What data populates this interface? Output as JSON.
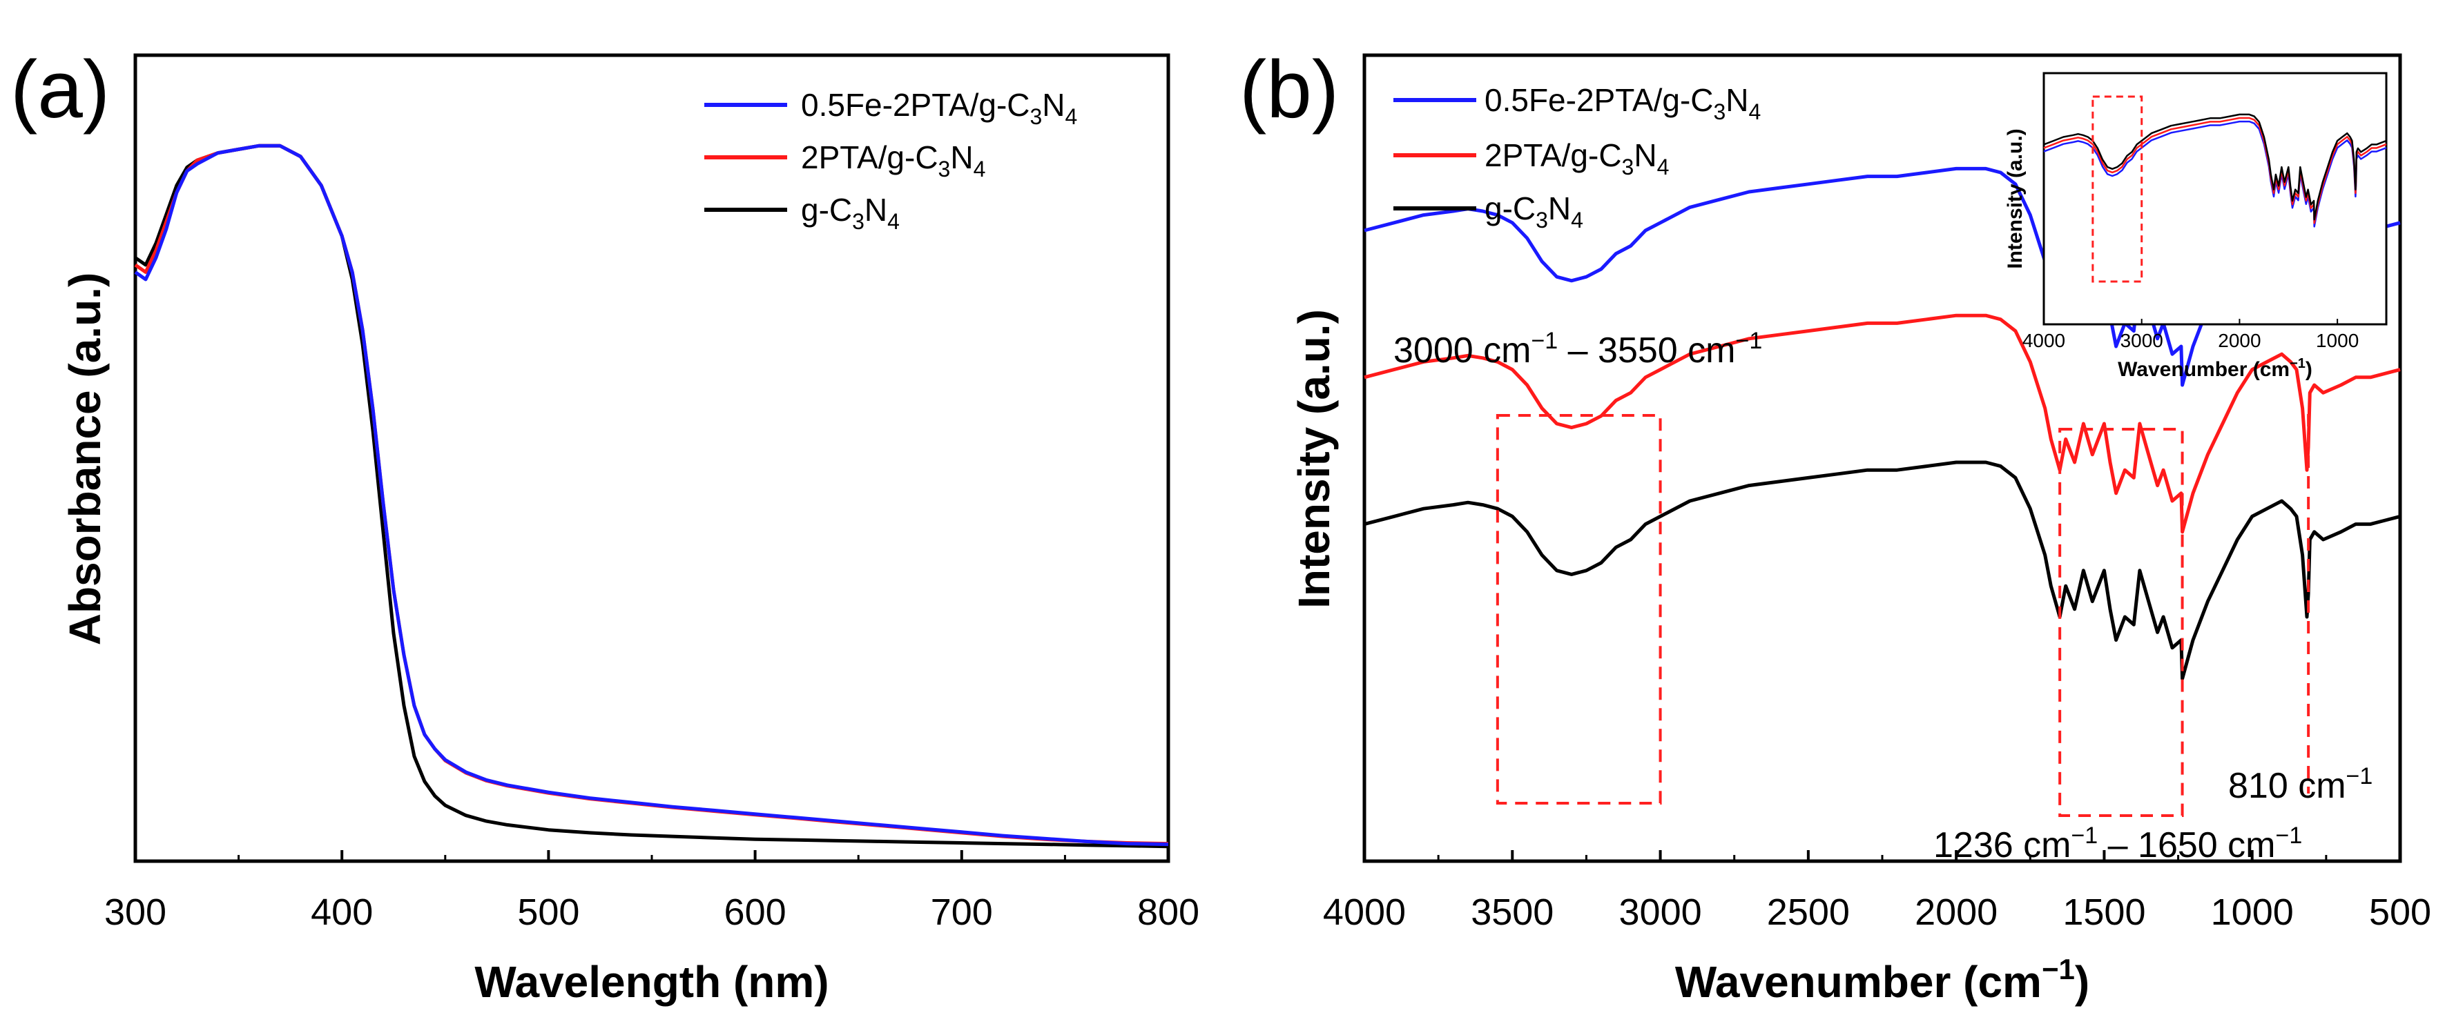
{
  "panels": [
    {
      "id": "a",
      "label": "(a)"
    },
    {
      "id": "b",
      "label": "(b)"
    }
  ],
  "colors": {
    "Fe": "#1a1aff",
    "PTA": "#ff1a1a",
    "g": "#000000",
    "box": "#ff2020"
  },
  "chart_data": [
    {
      "type": "line",
      "panel": "(a)",
      "xlabel": "Wavelength (nm)",
      "ylabel": "Absorbance (a.u.)",
      "xlim": [
        300,
        800
      ],
      "ylim": [
        0,
        1
      ],
      "xticks": [
        300,
        400,
        500,
        600,
        700,
        800
      ],
      "x": [
        300,
        305,
        310,
        315,
        320,
        325,
        330,
        340,
        350,
        360,
        370,
        380,
        390,
        400,
        405,
        410,
        415,
        420,
        425,
        430,
        435,
        440,
        445,
        450,
        460,
        470,
        480,
        500,
        520,
        540,
        560,
        580,
        600,
        620,
        640,
        660,
        680,
        700,
        720,
        740,
        760,
        780,
        800
      ],
      "series": [
        {
          "name": "0.5Fe-2PTA/g-C3N4",
          "color": "#1a1aff",
          "values": [
            0.8,
            0.79,
            0.82,
            0.86,
            0.91,
            0.94,
            0.95,
            0.965,
            0.97,
            0.975,
            0.975,
            0.96,
            0.92,
            0.85,
            0.8,
            0.72,
            0.61,
            0.48,
            0.36,
            0.27,
            0.2,
            0.16,
            0.14,
            0.125,
            0.108,
            0.097,
            0.09,
            0.08,
            0.072,
            0.066,
            0.06,
            0.055,
            0.05,
            0.045,
            0.04,
            0.035,
            0.03,
            0.025,
            0.02,
            0.016,
            0.012,
            0.009,
            0.008
          ]
        },
        {
          "name": "2PTA/g-C3N4",
          "color": "#ff1a1a",
          "values": [
            0.81,
            0.8,
            0.83,
            0.87,
            0.91,
            0.94,
            0.955,
            0.965,
            0.97,
            0.975,
            0.975,
            0.96,
            0.92,
            0.85,
            0.8,
            0.72,
            0.61,
            0.48,
            0.36,
            0.27,
            0.2,
            0.16,
            0.14,
            0.124,
            0.107,
            0.096,
            0.089,
            0.079,
            0.071,
            0.065,
            0.059,
            0.054,
            0.049,
            0.044,
            0.039,
            0.034,
            0.029,
            0.024,
            0.019,
            0.015,
            0.012,
            0.01,
            0.009
          ]
        },
        {
          "name": "g-C3N4",
          "color": "#000000",
          "values": [
            0.82,
            0.81,
            0.84,
            0.88,
            0.92,
            0.945,
            0.955,
            0.965,
            0.97,
            0.975,
            0.975,
            0.96,
            0.92,
            0.85,
            0.79,
            0.7,
            0.58,
            0.44,
            0.3,
            0.2,
            0.13,
            0.095,
            0.075,
            0.062,
            0.048,
            0.04,
            0.035,
            0.028,
            0.024,
            0.021,
            0.019,
            0.017,
            0.015,
            0.014,
            0.013,
            0.012,
            0.011,
            0.01,
            0.009,
            0.008,
            0.007,
            0.006,
            0.005
          ]
        }
      ],
      "legend": [
        {
          "main": "0.5Fe-2PTA/g-C",
          "sub1": "3",
          "mid": "N",
          "sub2": "4"
        },
        {
          "main": "2PTA/g-C",
          "sub1": "3",
          "mid": "N",
          "sub2": "4"
        },
        {
          "main": "g-C",
          "sub1": "3",
          "mid": "N",
          "sub2": "4"
        }
      ],
      "legend_position": "top-right"
    },
    {
      "type": "line",
      "panel": "(b)",
      "xlabel": "Wavenumber (cm",
      "xlabel_sup": "−1",
      "xlabel_end": ")",
      "ylabel": "Intensity (a.u.)",
      "xlim": [
        4000,
        500
      ],
      "ylim": [
        0,
        1
      ],
      "xticks": [
        4000,
        3500,
        3000,
        2500,
        2000,
        1500,
        1000,
        500
      ],
      "x": [
        4000,
        3900,
        3800,
        3700,
        3650,
        3600,
        3550,
        3500,
        3450,
        3400,
        3350,
        3300,
        3250,
        3200,
        3150,
        3100,
        3050,
        3000,
        2900,
        2800,
        2700,
        2600,
        2500,
        2400,
        2300,
        2200,
        2100,
        2000,
        1900,
        1850,
        1800,
        1750,
        1700,
        1680,
        1650,
        1630,
        1600,
        1570,
        1540,
        1500,
        1480,
        1460,
        1430,
        1400,
        1380,
        1350,
        1320,
        1300,
        1270,
        1240,
        1236,
        1200,
        1150,
        1100,
        1050,
        1000,
        950,
        900,
        870,
        850,
        830,
        815,
        810,
        805,
        790,
        760,
        700,
        650,
        600,
        550,
        500
      ],
      "baseline": [
        0.42,
        0.43,
        0.44,
        0.445,
        0.448,
        0.445,
        0.44,
        0.43,
        0.41,
        0.38,
        0.36,
        0.355,
        0.36,
        0.37,
        0.39,
        0.4,
        0.42,
        0.43,
        0.45,
        0.46,
        0.47,
        0.475,
        0.48,
        0.485,
        0.49,
        0.49,
        0.495,
        0.5,
        0.5,
        0.495,
        0.48,
        0.44,
        0.38,
        0.34,
        0.3,
        0.34,
        0.31,
        0.36,
        0.32,
        0.36,
        0.31,
        0.27,
        0.3,
        0.29,
        0.36,
        0.32,
        0.28,
        0.3,
        0.26,
        0.27,
        0.22,
        0.27,
        0.32,
        0.36,
        0.4,
        0.43,
        0.44,
        0.45,
        0.44,
        0.43,
        0.38,
        0.3,
        0.33,
        0.4,
        0.41,
        0.4,
        0.41,
        0.42,
        0.42,
        0.425,
        0.43
      ],
      "offsets": {
        "0.5Fe-2PTA/g-C3N4": 0.38,
        "2PTA/g-C3N4": 0.19,
        "g-C3N4": 0.0
      },
      "series": [
        {
          "name": "0.5Fe-2PTA/g-C3N4",
          "color": "#1a1aff"
        },
        {
          "name": "2PTA/g-C3N4",
          "color": "#ff1a1a"
        },
        {
          "name": "g-C3N4",
          "color": "#000000"
        }
      ],
      "legend": [
        {
          "main": "0.5Fe-2PTA/g-C",
          "sub1": "3",
          "mid": "N",
          "sub2": "4"
        },
        {
          "main": "2PTA/g-C",
          "sub1": "3",
          "mid": "N",
          "sub2": "4"
        },
        {
          "main": "g-C",
          "sub1": "3",
          "mid": "N",
          "sub2": "4"
        }
      ],
      "legend_position": "top-left",
      "annotations": {
        "region1": {
          "pre": "3000 cm",
          "sup": "−1",
          "mid": " – 3550 cm",
          "sup2": "−1",
          "range": [
            3550,
            3000
          ]
        },
        "region2": {
          "pre": "1236 cm",
          "sup": "−1",
          "mid": " – 1650 cm",
          "sup2": "−1",
          "range": [
            1650,
            1236
          ]
        },
        "peak": {
          "pre": "810 cm",
          "sup": "−1",
          "x": 810
        }
      },
      "inset": {
        "xlabel": "Wavenumber (cm",
        "xlabel_sup": "−1",
        "xlabel_end": ")",
        "ylabel": "Intensity (a.u.)",
        "xlim": [
          4000,
          500
        ],
        "xticks": [
          4000,
          3000,
          2000,
          1000
        ],
        "box_range": [
          3500,
          3000
        ]
      }
    }
  ]
}
